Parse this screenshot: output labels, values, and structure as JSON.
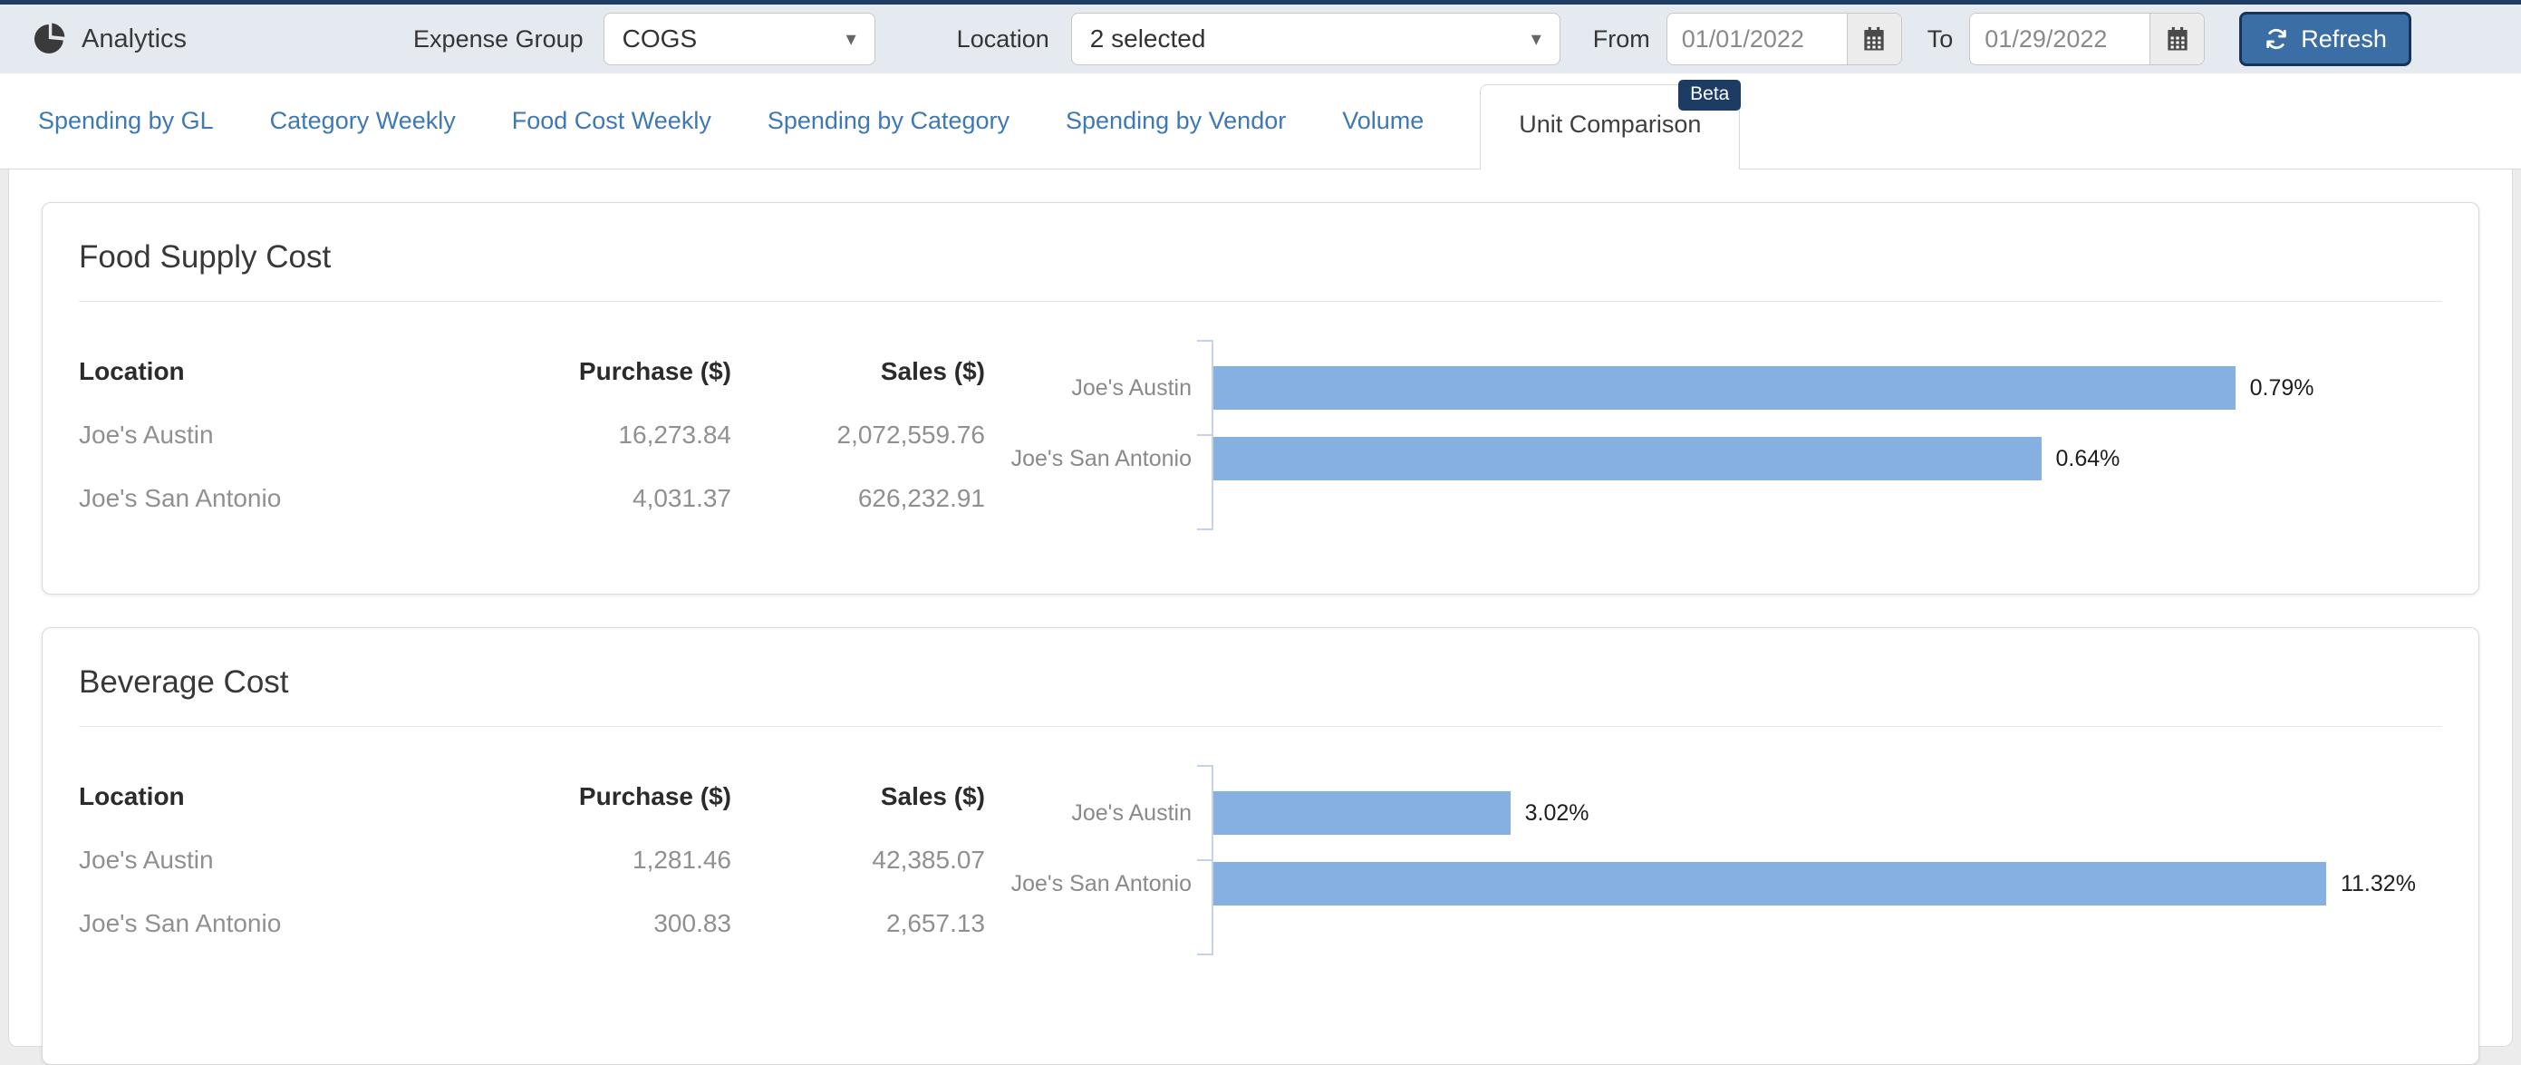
{
  "header": {
    "app_title": "Analytics",
    "expense_group_label": "Expense Group",
    "expense_group_value": "COGS",
    "location_label": "Location",
    "location_value": "2 selected",
    "from_label": "From",
    "from_value": "01/01/2022",
    "to_label": "To",
    "to_value": "01/29/2022",
    "refresh_label": "Refresh"
  },
  "tabs": [
    {
      "label": "Spending by GL",
      "active": false
    },
    {
      "label": "Category Weekly",
      "active": false
    },
    {
      "label": "Food Cost Weekly",
      "active": false
    },
    {
      "label": "Spending by Category",
      "active": false
    },
    {
      "label": "Spending by Vendor",
      "active": false
    },
    {
      "label": "Volume",
      "active": false
    },
    {
      "label": "Unit Comparison",
      "active": true,
      "badge": "Beta"
    }
  ],
  "cards": [
    {
      "title": "Food Supply Cost",
      "table": {
        "headers": [
          "Location",
          "Purchase ($)",
          "Sales ($)"
        ],
        "rows": [
          {
            "location": "Joe's Austin",
            "purchase": "16,273.84",
            "sales": "2,072,559.76"
          },
          {
            "location": "Joe's San Antonio",
            "purchase": "4,031.37",
            "sales": "626,232.91"
          }
        ]
      }
    },
    {
      "title": "Beverage Cost",
      "table": {
        "headers": [
          "Location",
          "Purchase ($)",
          "Sales ($)"
        ],
        "rows": [
          {
            "location": "Joe's Austin",
            "purchase": "1,281.46",
            "sales": "42,385.07"
          },
          {
            "location": "Joe's San Antonio",
            "purchase": "300.83",
            "sales": "2,657.13"
          }
        ]
      }
    }
  ],
  "chart_data": [
    {
      "type": "bar",
      "orientation": "horizontal",
      "title": "Food Supply Cost",
      "categories": [
        "Joe's Austin",
        "Joe's San Antonio"
      ],
      "values": [
        0.79,
        0.64
      ],
      "data_labels": [
        "0.79%",
        "0.64%"
      ],
      "unit": "%",
      "xlim": [
        0,
        0.95
      ],
      "grid": false,
      "legend": false,
      "bar_color": "#86b0e0"
    },
    {
      "type": "bar",
      "orientation": "horizontal",
      "title": "Beverage Cost",
      "categories": [
        "Joe's Austin",
        "Joe's San Antonio"
      ],
      "values": [
        3.02,
        11.32
      ],
      "data_labels": [
        "3.02%",
        "11.32%"
      ],
      "unit": "%",
      "xlim": [
        0,
        12.5
      ],
      "grid": false,
      "legend": false,
      "bar_color": "#86b0e0"
    }
  ],
  "colors": {
    "top_strip": "#1d3c63",
    "header_bg": "#e5eaf1",
    "tab_link": "#3e78b5",
    "badge_bg": "#1d3c63",
    "refresh_bg": "#3a6ea5",
    "bar_fill": "#86b0e0",
    "axis": "#c5d3e8"
  }
}
